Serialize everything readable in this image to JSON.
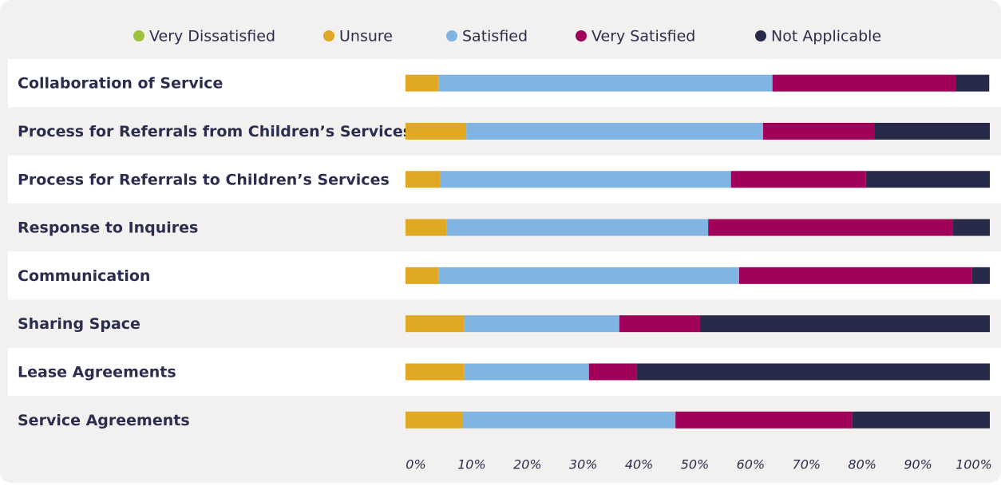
{
  "chart_data": {
    "type": "stacked-bar-horizontal",
    "categories": [
      "Collaboration of Service",
      "Process for Referrals from Children’s Services",
      "Process for Referrals to Children’s Services",
      "Response to Inquires",
      "Communication",
      "Sharing Space",
      "Lease Agreements",
      "Service Agreements"
    ],
    "series": [
      {
        "name": "Very Dissatisfied",
        "color": "#9dc23b",
        "values": [
          0,
          0,
          0,
          0,
          0,
          0,
          0,
          0
        ]
      },
      {
        "name": "Unsure",
        "color": "#e0a823",
        "values": [
          5.7,
          10.4,
          6.0,
          7.0,
          5.7,
          10.0,
          10.0,
          9.7
        ]
      },
      {
        "name": "Satisfied",
        "color": "#82b4e3",
        "values": [
          57.1,
          50.8,
          49.7,
          44.8,
          51.4,
          26.6,
          21.4,
          36.5
        ]
      },
      {
        "name": "Very Satisfied",
        "color": "#a0005a",
        "values": [
          31.4,
          19.0,
          23.1,
          41.8,
          39.8,
          13.8,
          8.1,
          30.2
        ]
      },
      {
        "name": "Not Applicable",
        "color": "#282a4a",
        "values": [
          5.7,
          19.8,
          21.2,
          6.4,
          3.1,
          49.6,
          60.5,
          23.6
        ]
      }
    ],
    "xlim": [
      0,
      100
    ],
    "xticks": [
      {
        "value": 0,
        "label": "0%"
      },
      {
        "value": 10,
        "label": "10%"
      },
      {
        "value": 20,
        "label": "20%"
      },
      {
        "value": 30,
        "label": "30%"
      },
      {
        "value": 40,
        "label": "40%"
      },
      {
        "value": 50,
        "label": "50%"
      },
      {
        "value": 60,
        "label": "60%"
      },
      {
        "value": 70,
        "label": "70%"
      },
      {
        "value": 80,
        "label": "80%"
      },
      {
        "value": 90,
        "label": "90%"
      },
      {
        "value": 100,
        "label": "100%"
      }
    ],
    "legend": "top"
  }
}
